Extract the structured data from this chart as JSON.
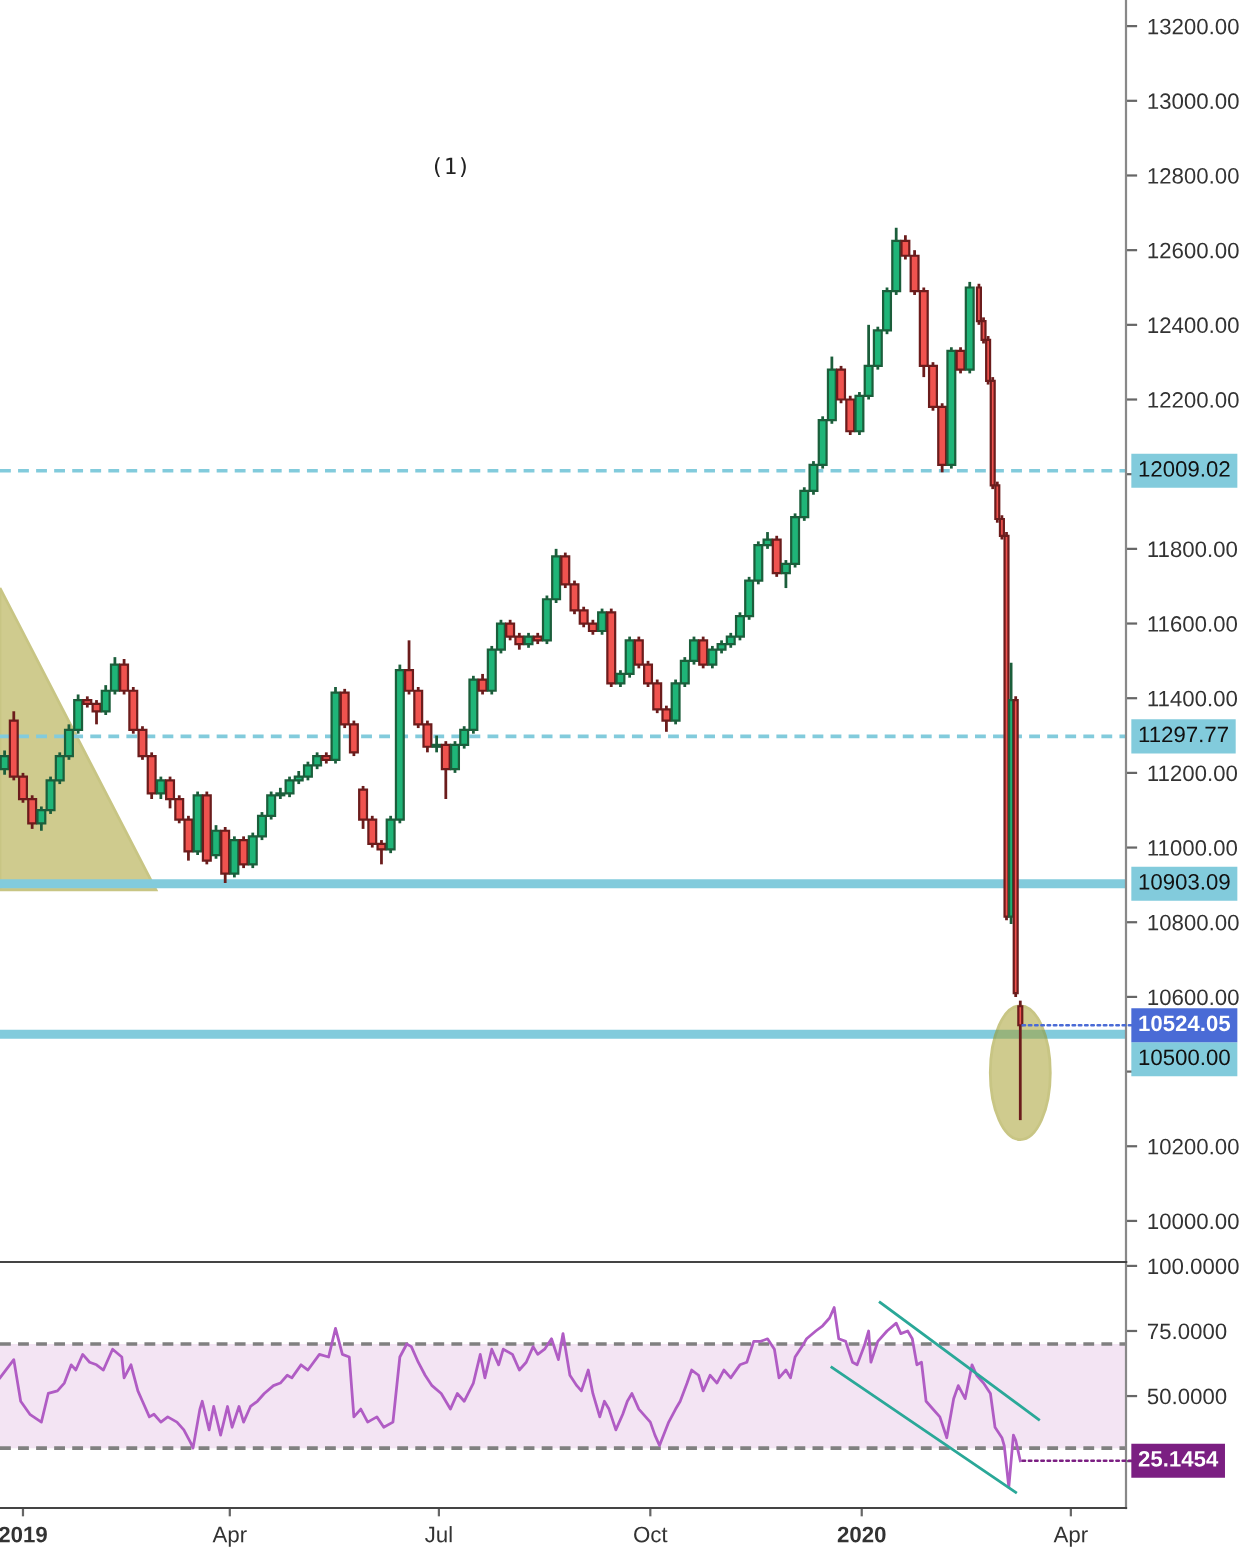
{
  "chart_data": [
    {
      "type": "candlestick",
      "x": [
        "2018-12-24",
        "2018-12-28",
        "2019-01-01",
        "2019-01-05",
        "2019-01-09",
        "2019-01-13",
        "2019-01-17",
        "2019-01-21",
        "2019-01-25",
        "2019-01-29",
        "2019-02-02",
        "2019-02-06",
        "2019-02-10",
        "2019-02-14",
        "2019-02-18",
        "2019-02-22",
        "2019-02-26",
        "2019-03-02",
        "2019-03-06",
        "2019-03-10",
        "2019-03-14",
        "2019-03-18",
        "2019-03-22",
        "2019-03-26",
        "2019-03-30",
        "2019-04-03",
        "2019-04-07",
        "2019-04-11",
        "2019-04-15",
        "2019-04-19",
        "2019-04-23",
        "2019-04-27",
        "2019-05-01",
        "2019-05-05",
        "2019-05-09",
        "2019-05-13",
        "2019-05-17",
        "2019-05-21",
        "2019-05-25",
        "2019-05-29",
        "2019-06-02",
        "2019-06-06",
        "2019-06-10",
        "2019-06-14",
        "2019-06-18",
        "2019-06-22",
        "2019-06-26",
        "2019-06-30",
        "2019-07-04",
        "2019-07-08",
        "2019-07-12",
        "2019-07-16",
        "2019-07-20",
        "2019-07-24",
        "2019-07-28",
        "2019-08-01",
        "2019-08-05",
        "2019-08-09",
        "2019-08-13",
        "2019-08-17",
        "2019-08-21",
        "2019-08-25",
        "2019-08-29",
        "2019-09-02",
        "2019-09-06",
        "2019-09-10",
        "2019-09-14",
        "2019-09-18",
        "2019-09-22",
        "2019-09-26",
        "2019-09-30",
        "2019-10-04",
        "2019-10-08",
        "2019-10-12",
        "2019-10-16",
        "2019-10-20",
        "2019-10-24",
        "2019-10-28",
        "2019-11-01",
        "2019-11-05",
        "2019-11-09",
        "2019-11-13",
        "2019-11-17",
        "2019-11-21",
        "2019-11-25",
        "2019-11-29",
        "2019-12-03",
        "2019-12-07",
        "2019-12-11",
        "2019-12-15",
        "2019-12-19",
        "2019-12-23",
        "2019-12-27",
        "2019-12-31",
        "2020-01-04",
        "2020-01-08",
        "2020-01-12",
        "2020-01-16",
        "2020-01-20",
        "2020-01-24",
        "2020-01-28",
        "2020-02-01",
        "2020-02-05",
        "2020-02-09",
        "2020-02-13",
        "2020-02-17",
        "2020-02-21",
        "2020-02-23",
        "2020-02-25",
        "2020-02-27",
        "2020-02-29",
        "2020-03-02",
        "2020-03-04",
        "2020-03-06",
        "2020-03-08",
        "2020-03-10"
      ],
      "ohlc": [
        [
          11210,
          11260,
          11195,
          11245
        ],
        [
          11340,
          11365,
          11180,
          11190
        ],
        [
          11190,
          11200,
          11120,
          11130
        ],
        [
          11130,
          11140,
          11050,
          11065
        ],
        [
          11065,
          11110,
          11045,
          11100
        ],
        [
          11100,
          11190,
          11090,
          11180
        ],
        [
          11180,
          11255,
          11170,
          11245
        ],
        [
          11245,
          11330,
          11235,
          11315
        ],
        [
          11315,
          11410,
          11305,
          11395
        ],
        [
          11395,
          11405,
          11375,
          11385
        ],
        [
          11385,
          11395,
          11330,
          11365
        ],
        [
          11365,
          11435,
          11355,
          11420
        ],
        [
          11420,
          11510,
          11410,
          11490
        ],
        [
          11490,
          11505,
          11410,
          11420
        ],
        [
          11420,
          11430,
          11305,
          11315
        ],
        [
          11315,
          11325,
          11235,
          11245
        ],
        [
          11245,
          11255,
          11130,
          11145
        ],
        [
          11145,
          11190,
          11130,
          11180
        ],
        [
          11180,
          11190,
          11105,
          11130
        ],
        [
          11130,
          11140,
          11065,
          11075
        ],
        [
          11075,
          11085,
          10965,
          10990
        ],
        [
          10990,
          11150,
          10980,
          11140
        ],
        [
          11140,
          11150,
          10955,
          10965
        ],
        [
          10980,
          11060,
          10970,
          11045
        ],
        [
          11045,
          11055,
          10905,
          10930
        ],
        [
          10930,
          11030,
          10920,
          11020
        ],
        [
          11020,
          11030,
          10945,
          10955
        ],
        [
          10955,
          11040,
          10945,
          11030
        ],
        [
          11030,
          11095,
          11020,
          11085
        ],
        [
          11085,
          11150,
          11075,
          11140
        ],
        [
          11140,
          11160,
          11130,
          11145
        ],
        [
          11145,
          11190,
          11135,
          11180
        ],
        [
          11180,
          11205,
          11170,
          11190
        ],
        [
          11190,
          11230,
          11180,
          11220
        ],
        [
          11220,
          11255,
          11210,
          11245
        ],
        [
          11245,
          11255,
          11225,
          11235
        ],
        [
          11235,
          11430,
          11225,
          11415
        ],
        [
          11415,
          11425,
          11320,
          11330
        ],
        [
          11330,
          11340,
          11245,
          11255
        ],
        [
          11155,
          11165,
          11050,
          11075
        ],
        [
          11075,
          11085,
          11000,
          11010
        ],
        [
          11010,
          11020,
          10955,
          10995
        ],
        [
          10995,
          11085,
          10985,
          11075
        ],
        [
          11075,
          11490,
          11065,
          11475
        ],
        [
          11475,
          11555,
          11410,
          11420
        ],
        [
          11420,
          11430,
          11320,
          11330
        ],
        [
          11330,
          11340,
          11255,
          11270
        ],
        [
          11270,
          11300,
          11255,
          11275
        ],
        [
          11275,
          11285,
          11130,
          11210
        ],
        [
          11210,
          11285,
          11200,
          11275
        ],
        [
          11275,
          11325,
          11265,
          11315
        ],
        [
          11315,
          11460,
          11305,
          11450
        ],
        [
          11450,
          11465,
          11410,
          11420
        ],
        [
          11420,
          11540,
          11410,
          11530
        ],
        [
          11530,
          11610,
          11520,
          11600
        ],
        [
          11600,
          11610,
          11555,
          11565
        ],
        [
          11565,
          11575,
          11530,
          11545
        ],
        [
          11545,
          11575,
          11535,
          11565
        ],
        [
          11565,
          11575,
          11545,
          11555
        ],
        [
          11555,
          11675,
          11545,
          11665
        ],
        [
          11665,
          11800,
          11655,
          11780
        ],
        [
          11780,
          11790,
          11695,
          11705
        ],
        [
          11705,
          11715,
          11625,
          11635
        ],
        [
          11635,
          11645,
          11590,
          11600
        ],
        [
          11600,
          11610,
          11570,
          11580
        ],
        [
          11580,
          11640,
          11570,
          11630
        ],
        [
          11630,
          11640,
          11430,
          11440
        ],
        [
          11440,
          11475,
          11430,
          11465
        ],
        [
          11465,
          11565,
          11455,
          11555
        ],
        [
          11555,
          11565,
          11480,
          11490
        ],
        [
          11490,
          11500,
          11430,
          11440
        ],
        [
          11440,
          11450,
          11360,
          11370
        ],
        [
          11370,
          11380,
          11310,
          11340
        ],
        [
          11340,
          11450,
          11330,
          11440
        ],
        [
          11440,
          11510,
          11430,
          11500
        ],
        [
          11500,
          11565,
          11490,
          11555
        ],
        [
          11555,
          11565,
          11480,
          11490
        ],
        [
          11490,
          11540,
          11480,
          11530
        ],
        [
          11530,
          11555,
          11520,
          11545
        ],
        [
          11545,
          11575,
          11535,
          11565
        ],
        [
          11565,
          11630,
          11555,
          11620
        ],
        [
          11620,
          11725,
          11610,
          11715
        ],
        [
          11715,
          11820,
          11705,
          11810
        ],
        [
          11810,
          11845,
          11800,
          11825
        ],
        [
          11825,
          11835,
          11725,
          11735
        ],
        [
          11735,
          11770,
          11695,
          11760
        ],
        [
          11760,
          11895,
          11750,
          11885
        ],
        [
          11885,
          11965,
          11875,
          11955
        ],
        [
          11955,
          12035,
          11945,
          12025
        ],
        [
          12025,
          12155,
          12015,
          12145
        ],
        [
          12145,
          12315,
          12135,
          12280
        ],
        [
          12280,
          12290,
          12190,
          12200
        ],
        [
          12200,
          12210,
          12105,
          12115
        ],
        [
          12115,
          12220,
          12105,
          12210
        ],
        [
          12210,
          12400,
          12200,
          12290
        ],
        [
          12290,
          12395,
          12280,
          12385
        ],
        [
          12385,
          12500,
          12375,
          12490
        ],
        [
          12490,
          12660,
          12480,
          12625
        ],
        [
          12625,
          12640,
          12575,
          12585
        ],
        [
          12585,
          12600,
          12480,
          12490
        ],
        [
          12490,
          12500,
          12260,
          12290
        ],
        [
          12290,
          12300,
          12170,
          12180
        ],
        [
          12180,
          12190,
          12005,
          12025
        ],
        [
          12025,
          12340,
          12015,
          12330
        ],
        [
          12330,
          12340,
          12270,
          12280
        ],
        [
          12280,
          12515,
          12270,
          12500
        ],
        [
          12500,
          12510,
          12400,
          12410
        ],
        [
          12410,
          12420,
          12350,
          12360
        ],
        [
          12360,
          12370,
          12240,
          12250
        ],
        [
          12250,
          12260,
          11960,
          11970
        ],
        [
          11970,
          11980,
          11870,
          11880
        ],
        [
          11880,
          11890,
          11825,
          11835
        ],
        [
          11835,
          11845,
          10805,
          10815
        ],
        [
          10815,
          11495,
          10795,
          11395
        ],
        [
          11395,
          11405,
          10600,
          10610
        ],
        [
          10575,
          10590,
          10270,
          10524.05
        ]
      ],
      "xlim": [
        "2018-12-22",
        "2020-04-25"
      ],
      "ylim": [
        9890,
        13270
      ],
      "yticks": [
        {
          "value": 10000,
          "label": "10000.00"
        },
        {
          "value": 10200,
          "label": "10200.00"
        },
        {
          "value": 10400,
          "label": null
        },
        {
          "value": 10600,
          "label": "10600.00"
        },
        {
          "value": 10800,
          "label": "10800.00"
        },
        {
          "value": 11000,
          "label": "11000.00"
        },
        {
          "value": 11200,
          "label": "11200.00"
        },
        {
          "value": 11400,
          "label": "11400.00"
        },
        {
          "value": 11600,
          "label": "11600.00"
        },
        {
          "value": 11800,
          "label": "11800.00"
        },
        {
          "value": 12000,
          "label": null
        },
        {
          "value": 12200,
          "label": "12200.00"
        },
        {
          "value": 12400,
          "label": "12400.00"
        },
        {
          "value": 12600,
          "label": "12600.00"
        },
        {
          "value": 12800,
          "label": "12800.00"
        },
        {
          "value": 13000,
          "label": "13000.00"
        },
        {
          "value": 13200,
          "label": "13200.00"
        }
      ],
      "tick_labels": "y",
      "ref_lines": [
        {
          "axis": "y",
          "value": 12009.02,
          "label": "12009.02",
          "color": "#82cbdc",
          "line_style": "dashed"
        },
        {
          "axis": "y",
          "value": 11297.77,
          "label": "11297.77",
          "color": "#82cbdc",
          "line_style": "dashed"
        },
        {
          "axis": "y",
          "value": 10903.09,
          "label": "10903.09",
          "color": "#82cbdc",
          "line_style": "solid"
        },
        {
          "axis": "y",
          "value": 10500,
          "label": "10500.00",
          "color": "#82cbdc",
          "line_style": "solid"
        }
      ],
      "annotations": [
        "(1)",
        {
          "text": "10524.05",
          "x": "2020-03-10",
          "y": 10524.05
        }
      ]
    },
    {
      "type": "line",
      "series": [
        {
          "color": "#b05cc4",
          "x": [
            "2018-12-22",
            "2018-12-28",
            "2018-12-31",
            "2019-01-04",
            "2019-01-09",
            "2019-01-12",
            "2019-01-16",
            "2019-01-19",
            "2019-01-22",
            "2019-01-24",
            "2019-01-27",
            "2019-01-30",
            "2019-02-02",
            "2019-02-05",
            "2019-02-09",
            "2019-02-13",
            "2019-02-14",
            "2019-02-17",
            "2019-02-20",
            "2019-02-22",
            "2019-02-25",
            "2019-02-27",
            "2019-03-02",
            "2019-03-05",
            "2019-03-09",
            "2019-03-12",
            "2019-03-15",
            "2019-03-16",
            "2019-03-19",
            "2019-03-20",
            "2019-03-23",
            "2019-03-25",
            "2019-03-28",
            "2019-03-31",
            "2019-04-02",
            "2019-04-05",
            "2019-04-07",
            "2019-04-10",
            "2019-04-13",
            "2019-04-16",
            "2019-04-20",
            "2019-04-23",
            "2019-04-26",
            "2019-04-28",
            "2019-05-02",
            "2019-05-05",
            "2019-05-10",
            "2019-05-14",
            "2019-05-17",
            "2019-05-20",
            "2019-05-23",
            "2019-05-25",
            "2019-05-28",
            "2019-05-31",
            "2019-06-04",
            "2019-06-07",
            "2019-06-11",
            "2019-06-14",
            "2019-06-17",
            "2019-06-19",
            "2019-06-22",
            "2019-06-25",
            "2019-06-28",
            "2019-07-02",
            "2019-07-06",
            "2019-07-09",
            "2019-07-12",
            "2019-07-16",
            "2019-07-19",
            "2019-07-21",
            "2019-07-24",
            "2019-07-27",
            "2019-07-29",
            "2019-08-02",
            "2019-08-05",
            "2019-08-08",
            "2019-08-11",
            "2019-08-13",
            "2019-08-16",
            "2019-08-19",
            "2019-08-22",
            "2019-08-24",
            "2019-08-27",
            "2019-08-30",
            "2019-09-01",
            "2019-09-04",
            "2019-09-06",
            "2019-09-09",
            "2019-09-11",
            "2019-09-13",
            "2019-09-16",
            "2019-09-19",
            "2019-09-21",
            "2019-09-23",
            "2019-09-26",
            "2019-10-01",
            "2019-10-03",
            "2019-10-05",
            "2019-10-09",
            "2019-10-12",
            "2019-10-14",
            "2019-10-17",
            "2019-10-19",
            "2019-10-22",
            "2019-10-24",
            "2019-10-27",
            "2019-10-30",
            "2019-11-02",
            "2019-11-05",
            "2019-11-09",
            "2019-11-12",
            "2019-11-15",
            "2019-11-18",
            "2019-11-21",
            "2019-11-24",
            "2019-11-26",
            "2019-11-29",
            "2019-12-01",
            "2019-12-03",
            "2019-12-06",
            "2019-12-08",
            "2019-12-12",
            "2019-12-15",
            "2019-12-18",
            "2019-12-20",
            "2019-12-22",
            "2019-12-25",
            "2019-12-28",
            "2019-12-30",
            "2020-01-02",
            "2020-01-04",
            "2020-01-05",
            "2020-01-08",
            "2020-01-12",
            "2020-01-16",
            "2020-01-18",
            "2020-01-21",
            "2020-01-23",
            "2020-01-25",
            "2020-01-27",
            "2020-01-29",
            "2020-01-31",
            "2020-02-04",
            "2020-02-07",
            "2020-02-10",
            "2020-02-12",
            "2020-02-15",
            "2020-02-18",
            "2020-02-20",
            "2020-02-23",
            "2020-02-26",
            "2020-02-28",
            "2020-03-02",
            "2020-03-03",
            "2020-03-05",
            "2020-03-07",
            "2020-03-08",
            "2020-03-10"
          ],
          "values": [
            57,
            64,
            48,
            43,
            40,
            51,
            52,
            55,
            62,
            60,
            66,
            63,
            62,
            60,
            68,
            65,
            57,
            62,
            52,
            48,
            42,
            43,
            40,
            42,
            40,
            37,
            32,
            30,
            45,
            48,
            37,
            46,
            35,
            46,
            38,
            46,
            40,
            46,
            48,
            51,
            54,
            55,
            58,
            57,
            62,
            60,
            66,
            65,
            76,
            66,
            65,
            42,
            45,
            40,
            42,
            38,
            40,
            65,
            70,
            69,
            63,
            58,
            54,
            51,
            45,
            51,
            48,
            55,
            66,
            57,
            68,
            62,
            68,
            66,
            60,
            63,
            69,
            66,
            68,
            72,
            64,
            74,
            58,
            54,
            52,
            60,
            51,
            42,
            48,
            45,
            37,
            43,
            48,
            51,
            45,
            40,
            35,
            31,
            40,
            45,
            48,
            55,
            60,
            58,
            52,
            58,
            55,
            60,
            57,
            62,
            63,
            71,
            71,
            72,
            68,
            57,
            60,
            57,
            65,
            69,
            72,
            75,
            77,
            80,
            84,
            72,
            71,
            63,
            62,
            69,
            75,
            63,
            71,
            75,
            78,
            74,
            75,
            72,
            62,
            63,
            48,
            46,
            42,
            34,
            49,
            54,
            49,
            62,
            58,
            55,
            51,
            38,
            34,
            31,
            15,
            35,
            33,
            25.1454
          ]
        },
        {
          "color": "#2aa898",
          "x": [
            "2020-01-09",
            "2020-03-18"
          ],
          "values": [
            86,
            41
          ]
        },
        {
          "color": "#2aa898",
          "x": [
            "2019-12-19",
            "2020-03-08"
          ],
          "values": [
            61,
            13
          ]
        }
      ],
      "xlim": [
        "2018-12-22",
        "2020-04-25"
      ],
      "ylim": [
        7,
        101.5
      ],
      "xticks": [
        {
          "value": "2019-01-01",
          "label": "2019"
        },
        {
          "value": "2019-04-01",
          "label": "Apr"
        },
        {
          "value": "2019-07-01",
          "label": "Jul"
        },
        {
          "value": "2019-10-01",
          "label": "Oct"
        },
        {
          "value": "2020-01-01",
          "label": "2020"
        },
        {
          "value": "2020-04-01",
          "label": "Apr"
        }
      ],
      "yticks": [
        {
          "value": 100,
          "label": "100.0000"
        },
        {
          "value": 75,
          "label": "75.0000"
        },
        {
          "value": 50,
          "label": "50.0000"
        },
        {
          "value": 25,
          "label": null
        }
      ],
      "bands": [
        {
          "axis": "y",
          "from": 30,
          "to": 70,
          "color": "#f3e4f3"
        }
      ],
      "ref_lines": [
        {
          "axis": "y",
          "value": 70,
          "color": "#808080",
          "line_style": "dashed"
        },
        {
          "axis": "y",
          "value": 30,
          "color": "#808080",
          "line_style": "dashed"
        }
      ],
      "annotations": [
        {
          "text": "25.1454",
          "x": "2020-03-10",
          "y": 25.1454
        }
      ]
    }
  ]
}
